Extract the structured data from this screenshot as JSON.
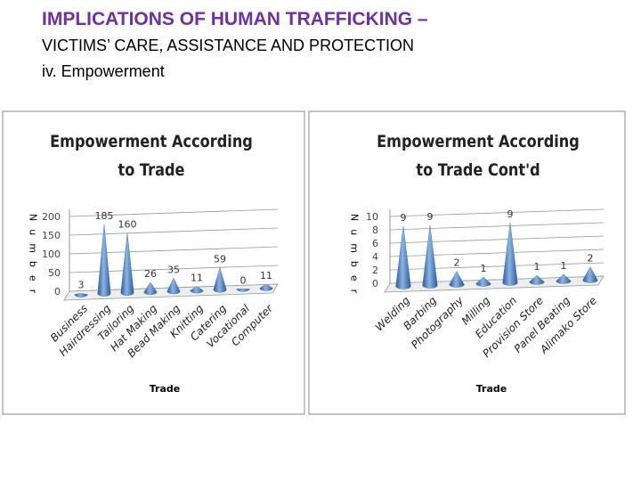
{
  "slide": {
    "title": "IMPLICATIONS OF HUMAN TRAFFICKING –",
    "subtitle": "VICTIMS’ CARE, ASSISTANCE AND PROTECTION",
    "section": "iv. Empowerment"
  },
  "chart_data": [
    {
      "type": "bar",
      "title": "Empowerment According to Trade",
      "xlabel": "Trade",
      "ylabel": "Number",
      "categories": [
        "Business",
        "Hairdressing",
        "Tailoring",
        "Hat Making",
        "Bead Making",
        "Knitting",
        "Catering",
        "Vocational",
        "Computer"
      ],
      "values": [
        3,
        185,
        160,
        26,
        35,
        11,
        59,
        0,
        11
      ],
      "color": "#4f81bd",
      "ylim": [
        0,
        200
      ],
      "yticks": [
        0,
        50,
        100,
        150,
        200
      ],
      "grid": true
    },
    {
      "type": "bar",
      "title": "Empowerment According to Trade Cont'd",
      "xlabel": "Trade",
      "ylabel": "Number",
      "categories": [
        "Welding",
        "Barbing",
        "Photography",
        "Milling",
        "Education",
        "Provision Store",
        "Panel Beating",
        "Alimako Store"
      ],
      "values": [
        9,
        9,
        2,
        1,
        9,
        1,
        1,
        2
      ],
      "color": "#4f81bd",
      "ylim": [
        0,
        10
      ],
      "yticks": [
        0,
        2,
        4,
        6,
        8,
        10
      ],
      "grid": true
    }
  ]
}
